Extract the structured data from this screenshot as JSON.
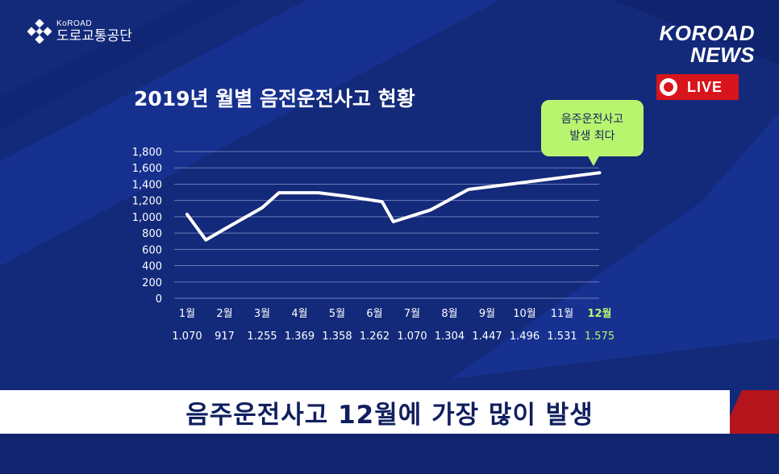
{
  "brand": {
    "logo_en": "KoROAD",
    "logo_ko": "도로교통공단"
  },
  "news": {
    "line1": "KOROAD",
    "line2": "NEWS",
    "live": "LIVE"
  },
  "callout": {
    "line1": "음주운전사고",
    "line2": "발생 최다"
  },
  "banner": {
    "text": "음주운전사고 12월에 가장 많이 발생"
  },
  "colors": {
    "background": "#13297a",
    "line": "#ffffff",
    "highlight": "#b8f56f",
    "live_red": "#d8151c",
    "banner_red": "#b4141c"
  },
  "chart_data": {
    "type": "line",
    "title": "2019년 월별 음전운전사고 현황",
    "categories": [
      "1월",
      "2월",
      "3월",
      "4월",
      "5월",
      "6월",
      "7월",
      "8월",
      "9월",
      "10월",
      "11월",
      "12월"
    ],
    "value_labels": [
      "1.070",
      "917",
      "1.255",
      "1.369",
      "1.358",
      "1.262",
      "1.070",
      "1.304",
      "1.447",
      "1.496",
      "1.531",
      "1.575"
    ],
    "highlight_category": "12월",
    "y_ticks": [
      "1,800",
      "1,600",
      "1,400",
      "1,200",
      "1,000",
      "800",
      "600",
      "400",
      "200",
      "0"
    ],
    "ylim": [
      0,
      1800
    ],
    "grid": true,
    "series": [
      {
        "points": [
          [
            1,
            1030
          ],
          [
            1.5,
            715
          ],
          [
            2,
            850
          ],
          [
            3,
            1110
          ],
          [
            3.45,
            1295
          ],
          [
            4.5,
            1295
          ],
          [
            5.2,
            1255
          ],
          [
            6.2,
            1185
          ],
          [
            6.5,
            940
          ],
          [
            7.5,
            1085
          ],
          [
            8.5,
            1335
          ],
          [
            12,
            1540
          ]
        ]
      }
    ]
  }
}
